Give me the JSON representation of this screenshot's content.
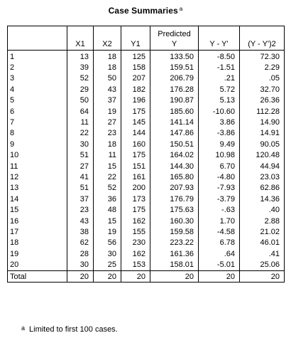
{
  "title": "Case Summaries",
  "title_note_mark": "a",
  "columns": [
    "",
    "X1",
    "X2",
    "Y1",
    "Predicted\nY",
    "Y - Y'",
    "(Y - Y')2"
  ],
  "rows": [
    [
      "1",
      "13",
      "18",
      "125",
      "133.50",
      "-8.50",
      "72.30"
    ],
    [
      "2",
      "39",
      "18",
      "158",
      "159.51",
      "-1.51",
      "2.29"
    ],
    [
      "3",
      "52",
      "50",
      "207",
      "206.79",
      ".21",
      ".05"
    ],
    [
      "4",
      "29",
      "43",
      "182",
      "176.28",
      "5.72",
      "32.70"
    ],
    [
      "5",
      "50",
      "37",
      "196",
      "190.87",
      "5.13",
      "26.36"
    ],
    [
      "6",
      "64",
      "19",
      "175",
      "185.60",
      "-10.60",
      "112.28"
    ],
    [
      "7",
      "11",
      "27",
      "145",
      "141.14",
      "3.86",
      "14.90"
    ],
    [
      "8",
      "22",
      "23",
      "144",
      "147.86",
      "-3.86",
      "14.91"
    ],
    [
      "9",
      "30",
      "18",
      "160",
      "150.51",
      "9.49",
      "90.05"
    ],
    [
      "10",
      "51",
      "11",
      "175",
      "164.02",
      "10.98",
      "120.48"
    ],
    [
      "11",
      "27",
      "15",
      "151",
      "144.30",
      "6.70",
      "44.94"
    ],
    [
      "12",
      "41",
      "22",
      "161",
      "165.80",
      "-4.80",
      "23.03"
    ],
    [
      "13",
      "51",
      "52",
      "200",
      "207.93",
      "-7.93",
      "62.86"
    ],
    [
      "14",
      "37",
      "36",
      "173",
      "176.79",
      "-3.79",
      "14.36"
    ],
    [
      "15",
      "23",
      "48",
      "175",
      "175.63",
      "-.63",
      ".40"
    ],
    [
      "16",
      "43",
      "15",
      "162",
      "160.30",
      "1.70",
      "2.88"
    ],
    [
      "17",
      "38",
      "19",
      "155",
      "159.58",
      "-4.58",
      "21.02"
    ],
    [
      "18",
      "62",
      "56",
      "230",
      "223.22",
      "6.78",
      "46.01"
    ],
    [
      "19",
      "28",
      "30",
      "162",
      "161.36",
      ".64",
      ".41"
    ],
    [
      "20",
      "30",
      "25",
      "153",
      "158.01",
      "-5.01",
      "25.06"
    ]
  ],
  "total": [
    "Total",
    "20",
    "20",
    "20",
    "20",
    "20",
    "20"
  ],
  "footnote": {
    "mark": "a",
    "text": "Limited to first 100 cases."
  }
}
